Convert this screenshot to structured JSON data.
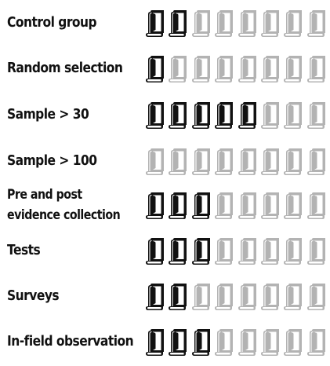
{
  "scale_max": 8,
  "colors": {
    "filled": "#111111",
    "empty": "#b3b3b3"
  },
  "icon_name": "book-icon",
  "rows": [
    {
      "lines": [
        "Control group"
      ],
      "filled": 2
    },
    {
      "lines": [
        "Random selection"
      ],
      "filled": 1
    },
    {
      "lines": [
        "Sample > 30"
      ],
      "filled": 5
    },
    {
      "lines": [
        "Sample > 100"
      ],
      "filled": 0
    },
    {
      "lines": [
        "Pre and post",
        "evidence collection"
      ],
      "filled": 3
    },
    {
      "lines": [
        "Tests"
      ],
      "filled": 3
    },
    {
      "lines": [
        "Surveys"
      ],
      "filled": 2
    },
    {
      "lines": [
        "In-field observation"
      ],
      "filled": 3
    }
  ]
}
